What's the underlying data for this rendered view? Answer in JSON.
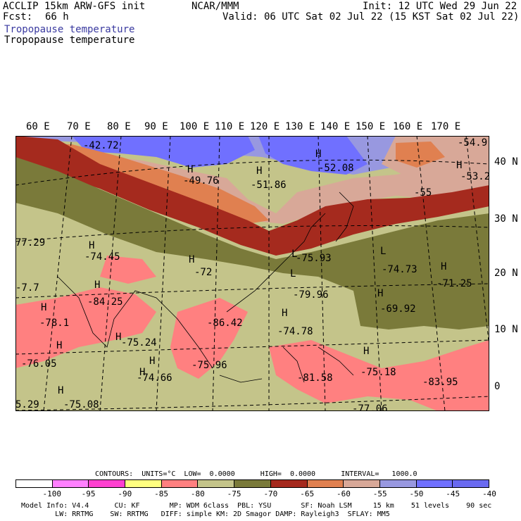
{
  "header": {
    "model": "ACCLIP 15km ARW-GFS init",
    "fcst_label": "Fcst:",
    "fcst_value": "66 h",
    "center": "NCAR/MMM",
    "init": "Init: 12 UTC Wed 29 Jun 22",
    "valid": "Valid: 06 UTC Sat 02 Jul 22 (15 KST Sat 02 Jul 22)",
    "field1": "Tropopause temperature",
    "field2": "Tropopause temperature",
    "field1_color": "#3a3aa0"
  },
  "map": {
    "lon_labels": [
      "60 E",
      "70 E",
      "80 E",
      "90 E",
      "100 E",
      "110 E",
      "120 E",
      "130 E",
      "140 E",
      "150 E",
      "160 E",
      "170 E"
    ],
    "lat_labels": [
      "40 N",
      "30 N",
      "20 N",
      "10 N",
      "0"
    ],
    "annotations": [
      {
        "text": "-42.72"
      },
      {
        "text": "H"
      },
      {
        "text": "-49.76"
      },
      {
        "text": "H"
      },
      {
        "text": "-51.86"
      },
      {
        "text": "H"
      },
      {
        "text": "-52.08"
      },
      {
        "text": "-55"
      },
      {
        "text": "-54.9"
      },
      {
        "text": "H"
      },
      {
        "text": "-53.2"
      },
      {
        "text": "77.29"
      },
      {
        "text": "H"
      },
      {
        "text": "-74.45"
      },
      {
        "text": "H"
      },
      {
        "text": "-72"
      },
      {
        "text": "L"
      },
      {
        "text": "-75.93"
      },
      {
        "text": "L"
      },
      {
        "text": "-74.73"
      },
      {
        "text": "H"
      },
      {
        "text": "-71.25"
      },
      {
        "text": "-7.7"
      },
      {
        "text": "H"
      },
      {
        "text": "-84.25"
      },
      {
        "text": "L"
      },
      {
        "text": "-79.96"
      },
      {
        "text": "H"
      },
      {
        "text": "-69.92"
      },
      {
        "text": "H"
      },
      {
        "text": "-78.1"
      },
      {
        "text": "-86.42"
      },
      {
        "text": "H"
      },
      {
        "text": "-74.78"
      },
      {
        "text": "H"
      },
      {
        "text": "-75.24"
      },
      {
        "text": "H"
      },
      {
        "text": "H"
      },
      {
        "text": "-75.96"
      },
      {
        "text": "-76.05"
      },
      {
        "text": "H"
      },
      {
        "text": "-75.18"
      },
      {
        "text": "H"
      },
      {
        "text": "-74.66"
      },
      {
        "text": "-81.58"
      },
      {
        "text": "-83.95"
      },
      {
        "text": "H"
      },
      {
        "text": "-75.08"
      },
      {
        "text": "5.29"
      },
      {
        "text": "-77.06"
      }
    ]
  },
  "legend": {
    "contours_line": "CONTOURS:  UNITS=°C  LOW=  0.0000      HIGH=  0.0000      INTERVAL=   1000.0",
    "colors": [
      "#ffffff",
      "#ff80ff",
      "#ff40d0",
      "#ffff80",
      "#ff8080",
      "#c4c48a",
      "#7a7a3a",
      "#a52a1e",
      "#e08050",
      "#d8a898",
      "#9898e0",
      "#7070ff",
      "#6a6af0"
    ],
    "labels": [
      "-100",
      "-95",
      "-90",
      "-85",
      "-80",
      "-75",
      "-70",
      "-65",
      "-60",
      "-55",
      "-50",
      "-45",
      "-40",
      "°C"
    ],
    "model_info_1": "Model Info: V4.4      CU: KF       MP: WDM 6class  PBL: YSU       SF: Noah LSM     15 km    51 levels    90 sec",
    "model_info_2": "        LW: RRTMG    SW: RRTMG   DIFF: simple KM: 2D Smagor DAMP: Rayleigh3  SFLAY: MM5"
  }
}
